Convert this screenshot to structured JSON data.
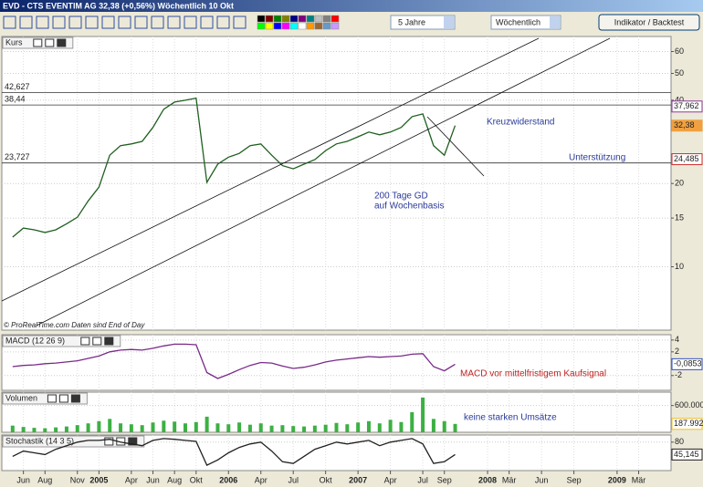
{
  "window": {
    "title": "EVD - CTS EVENTIM AG   32,38 (+0,56%)   Wöchentlich  10 Okt"
  },
  "toolbar": {
    "period": "5 Jahre",
    "interval": "Wöchentlich",
    "button": "Indikator / Backtest"
  },
  "chart_data": [
    {
      "type": "line",
      "title": "Kurs",
      "color": "#1f5f1f",
      "log_scale": true,
      "grid": true,
      "x": [
        "2004-05",
        "2004-06",
        "2004-07",
        "2004-08",
        "2004-09",
        "2004-10",
        "2004-11",
        "2004-12",
        "2005-01",
        "2005-02",
        "2005-03",
        "2005-04",
        "2005-05",
        "2005-06",
        "2005-07",
        "2005-08",
        "2005-09",
        "2005-10",
        "2005-11",
        "2005-12",
        "2006-01",
        "2006-02",
        "2006-03",
        "2006-04",
        "2006-05",
        "2006-06",
        "2006-07",
        "2006-08",
        "2006-09",
        "2006-10",
        "2006-11",
        "2006-12",
        "2007-01",
        "2007-02",
        "2007-03",
        "2007-04",
        "2007-05",
        "2007-06",
        "2007-07",
        "2007-08",
        "2007-09",
        "2007-10"
      ],
      "values": [
        12.8,
        13.8,
        13.6,
        13.3,
        13.6,
        14.3,
        15.1,
        17.3,
        19.4,
        25.3,
        27.4,
        27.8,
        28.4,
        31.9,
        37.1,
        39.4,
        40.0,
        40.7,
        20.2,
        23.5,
        24.9,
        25.7,
        27.4,
        27.8,
        25.3,
        23.2,
        22.6,
        23.5,
        24.4,
        26.3,
        27.8,
        28.4,
        29.5,
        30.7,
        30.0,
        30.7,
        31.9,
        34.9,
        35.7,
        27.4,
        25.3,
        32.38
      ],
      "xlim": [
        "2004-04",
        "2009-06"
      ],
      "ylim": [
        5.9,
        68
      ],
      "yticks": [
        10,
        15,
        20,
        40,
        50,
        60
      ],
      "levels": [
        {
          "value": 42.627,
          "label": "42,627"
        },
        {
          "value": 38.44,
          "label": "38,44"
        },
        {
          "value": 23.727,
          "label": "23,727"
        }
      ],
      "price_labels": [
        {
          "value": 37.962,
          "label": "37,962",
          "color": "#8a3a9a"
        },
        {
          "value": 32.38,
          "label": "32,38",
          "color": "#f0a040"
        },
        {
          "value": 24.485,
          "label": "24,485",
          "color": "#d03030"
        }
      ],
      "annotations": [
        "Kreuzwiderstand",
        "Unterstützung",
        "200 Tage GD",
        "auf Wochenbasis",
        "© ProRealTime.com  Daten sind End of Day"
      ]
    },
    {
      "type": "line",
      "title": "MACD (12 26 9)",
      "color": "#7a2a8a",
      "grid": true,
      "values": [
        -0.5,
        -0.3,
        -0.2,
        0,
        0.1,
        0.3,
        0.5,
        0.9,
        1.3,
        2.0,
        2.3,
        2.4,
        2.3,
        2.6,
        3.0,
        3.3,
        3.3,
        3.2,
        -1.5,
        -2.5,
        -1.8,
        -1.0,
        -0.3,
        0.2,
        0.1,
        -0.4,
        -0.8,
        -0.6,
        -0.2,
        0.3,
        0.6,
        0.8,
        1.0,
        1.2,
        1.1,
        1.2,
        1.3,
        1.6,
        1.7,
        -0.5,
        -1.2,
        -0.0853
      ],
      "ylim": [
        -4.5,
        4.9
      ],
      "yticks": [
        4,
        2,
        -2
      ],
      "price_labels": [
        {
          "value": -0.0853,
          "label": "-0,0853",
          "color": "#3050c0"
        }
      ],
      "annotations": [
        "MACD vor mittelfristigem Kaufsignal"
      ]
    },
    {
      "type": "bar",
      "title": "Volumen",
      "color": "#3cb043",
      "grid": true,
      "values": [
        150000,
        120000,
        100000,
        90000,
        110000,
        130000,
        160000,
        200000,
        250000,
        300000,
        200000,
        180000,
        160000,
        220000,
        260000,
        240000,
        200000,
        230000,
        350000,
        200000,
        180000,
        220000,
        170000,
        200000,
        150000,
        160000,
        140000,
        130000,
        150000,
        170000,
        210000,
        180000,
        220000,
        250000,
        200000,
        280000,
        230000,
        450000,
        780000,
        300000,
        250000,
        187992
      ],
      "ylim": [
        0,
        900000
      ],
      "yticks": [
        {
          "value": 600000,
          "label": "600.000"
        }
      ],
      "price_labels": [
        {
          "value": 187992,
          "label": "187.992",
          "color": "#f0c020"
        }
      ],
      "annotations": [
        "keine starken Umsätze"
      ]
    },
    {
      "type": "line",
      "title": "Stochastik (14 3 5)",
      "color": "#202020",
      "grid": true,
      "values": [
        40,
        55,
        50,
        45,
        60,
        70,
        80,
        85,
        85,
        88,
        80,
        75,
        70,
        85,
        90,
        88,
        85,
        82,
        15,
        30,
        50,
        65,
        75,
        80,
        55,
        25,
        20,
        40,
        60,
        70,
        80,
        75,
        80,
        85,
        70,
        80,
        85,
        90,
        75,
        20,
        25,
        45.145
      ],
      "ylim": [
        0,
        100
      ],
      "yticks": [
        80
      ],
      "price_labels": [
        {
          "value": 45.145,
          "label": "45,145",
          "color": "#202020"
        }
      ],
      "xticks": [
        {
          "value": "2004-06",
          "label": "Jun"
        },
        {
          "value": "2004-08",
          "label": "Aug"
        },
        {
          "value": "2004-11",
          "label": "Nov"
        },
        {
          "value": "2005-01",
          "label": "2005"
        },
        {
          "value": "2005-04",
          "label": "Apr"
        },
        {
          "value": "2005-06",
          "label": "Jun"
        },
        {
          "value": "2005-08",
          "label": "Aug"
        },
        {
          "value": "2005-10",
          "label": "Okt"
        },
        {
          "value": "2006-01",
          "label": "2006"
        },
        {
          "value": "2006-04",
          "label": "Apr"
        },
        {
          "value": "2006-07",
          "label": "Jul"
        },
        {
          "value": "2006-10",
          "label": "Okt"
        },
        {
          "value": "2007-01",
          "label": "2007"
        },
        {
          "value": "2007-04",
          "label": "Apr"
        },
        {
          "value": "2007-07",
          "label": "Jul"
        },
        {
          "value": "2007-09",
          "label": "Sep"
        },
        {
          "value": "2008-01",
          "label": "2008"
        },
        {
          "value": "2008-03",
          "label": "Mär"
        },
        {
          "value": "2008-06",
          "label": "Jun"
        },
        {
          "value": "2008-09",
          "label": "Sep"
        },
        {
          "value": "2009-01",
          "label": "2009"
        },
        {
          "value": "2009-03",
          "label": "Mär"
        }
      ]
    }
  ]
}
